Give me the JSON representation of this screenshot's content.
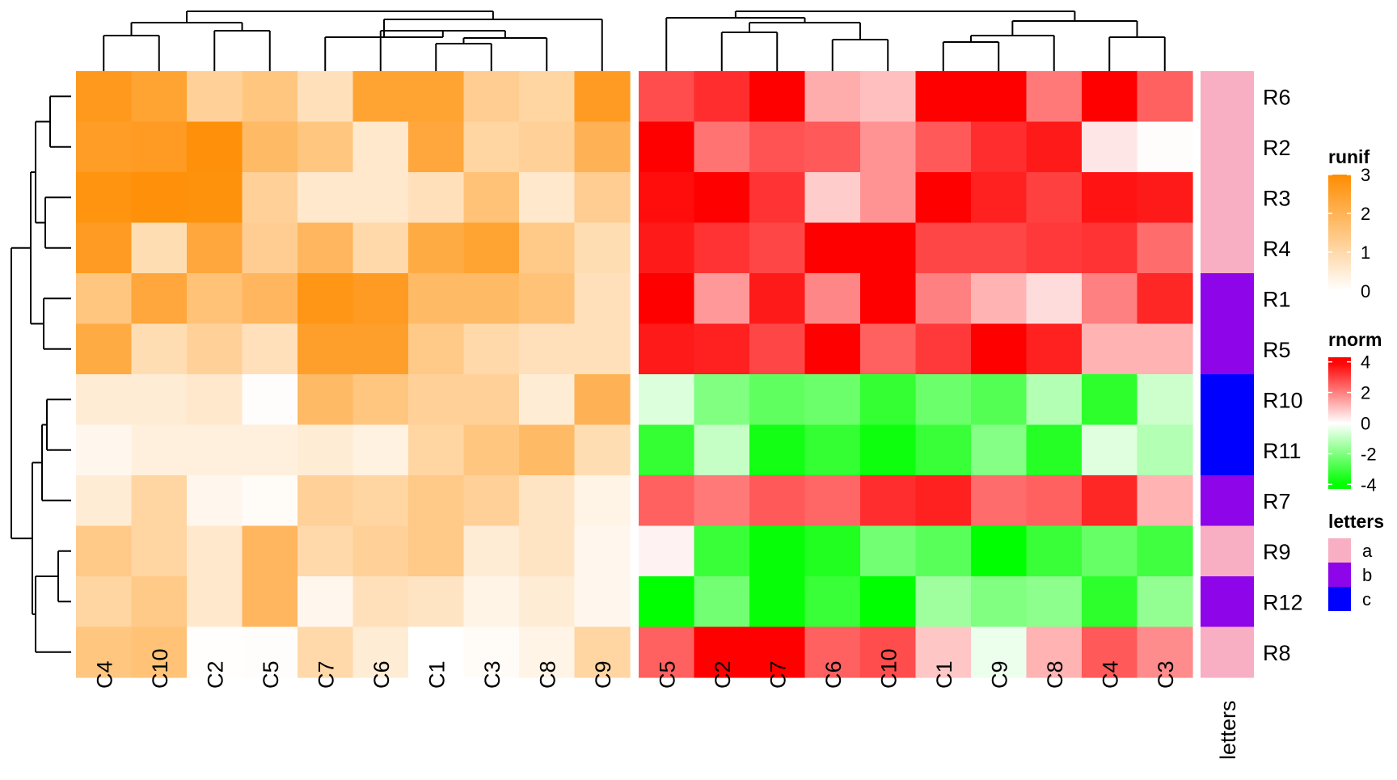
{
  "chart_data": {
    "type": "heatmap",
    "row_order": [
      "R6",
      "R2",
      "R3",
      "R4",
      "R1",
      "R5",
      "R10",
      "R11",
      "R7",
      "R9",
      "R12",
      "R8"
    ],
    "row_dendrogram": {
      "merges": [
        [
          "R6",
          "R2",
          0.7
        ],
        [
          "R3",
          "R4",
          0.78
        ],
        [
          "R6-R2",
          "R3-R4",
          0.92
        ],
        [
          "R1",
          "R5",
          0.72
        ],
        [
          "R6-R2-R3-R4",
          "R1-R5",
          0.97
        ],
        [
          "R10",
          "R11",
          0.6
        ],
        [
          "R10-R11",
          "R7",
          0.95
        ],
        [
          "R9",
          "R12",
          0.45
        ],
        [
          "R9-R12",
          "R8",
          0.9
        ],
        [
          "R10-R11-R7",
          "R9-R12-R8",
          0.97
        ],
        [
          "all_top",
          "all_bottom",
          1.0
        ]
      ]
    },
    "annotation": {
      "name": "letters",
      "values": [
        "a",
        "a",
        "a",
        "a",
        "b",
        "b",
        "c",
        "c",
        "b",
        "a",
        "b",
        "a"
      ],
      "legend_title": "letters",
      "levels": [
        {
          "label": "a",
          "color": "#F8AFC3"
        },
        {
          "label": "b",
          "color": "#8E05E9"
        },
        {
          "label": "c",
          "color": "#0000FF"
        }
      ]
    },
    "heatmaps": [
      {
        "name": "runif",
        "legend_title": "runif",
        "columns": [
          "C4",
          "C10",
          "C2",
          "C5",
          "C7",
          "C6",
          "C1",
          "C3",
          "C8",
          "C9"
        ],
        "color_stops": [
          {
            "value": 0,
            "color": "#FFFFFF"
          },
          {
            "value": 3,
            "color": "#FF8C00"
          }
        ],
        "legend_ticks": [
          "3",
          "2",
          "1",
          "0"
        ],
        "legend_range": [
          0,
          3
        ],
        "values": [
          [
            2.65,
            2.4,
            1.2,
            1.5,
            0.8,
            2.4,
            2.4,
            1.3,
            1.1,
            2.6
          ],
          [
            2.55,
            2.6,
            2.9,
            1.8,
            1.5,
            0.6,
            2.3,
            1.1,
            1.2,
            2.0
          ],
          [
            2.8,
            2.9,
            2.85,
            1.2,
            0.6,
            0.6,
            0.8,
            1.6,
            0.6,
            1.3
          ],
          [
            2.6,
            0.9,
            2.3,
            1.3,
            1.9,
            1.0,
            2.2,
            2.4,
            1.4,
            0.9
          ],
          [
            1.5,
            2.3,
            1.6,
            1.9,
            2.75,
            2.6,
            1.8,
            1.8,
            1.6,
            0.8
          ],
          [
            2.2,
            0.9,
            1.2,
            0.8,
            2.5,
            2.5,
            1.4,
            1.0,
            0.8,
            0.8
          ],
          [
            0.5,
            0.5,
            0.6,
            0.05,
            1.8,
            1.5,
            1.2,
            1.2,
            0.5,
            2.0
          ],
          [
            0.2,
            0.4,
            0.4,
            0.4,
            0.5,
            0.35,
            1.1,
            1.5,
            1.8,
            0.9
          ],
          [
            0.5,
            1.1,
            0.2,
            0.1,
            1.2,
            1.1,
            1.4,
            1.2,
            0.7,
            0.3
          ],
          [
            1.4,
            1.1,
            0.6,
            1.9,
            1.0,
            1.2,
            1.4,
            0.5,
            0.7,
            0.2
          ],
          [
            1.1,
            1.4,
            0.6,
            1.9,
            0.2,
            0.8,
            0.7,
            0.3,
            0.5,
            0.2
          ],
          [
            1.5,
            1.6,
            0.02,
            0.05,
            1.0,
            0.5,
            0.0,
            0.08,
            0.3,
            1.1
          ]
        ]
      },
      {
        "name": "rnorm",
        "legend_title": "rnorm",
        "columns": [
          "C5",
          "C2",
          "C7",
          "C6",
          "C10",
          "C1",
          "C9",
          "C8",
          "C4",
          "C3"
        ],
        "color_stops": [
          {
            "value": -4,
            "color": "#00FF00"
          },
          {
            "value": 0,
            "color": "#FFFFFF"
          },
          {
            "value": 4,
            "color": "#FF0000"
          }
        ],
        "legend_ticks": [
          "4",
          "2",
          "0",
          "-2",
          "-4"
        ],
        "legend_range": [
          -4.3,
          4.3
        ],
        "values": [
          [
            2.8,
            3.3,
            4.0,
            1.3,
            1.0,
            4.0,
            4.0,
            2.1,
            4.0,
            2.5
          ],
          [
            4.0,
            2.2,
            2.7,
            2.6,
            1.7,
            2.6,
            3.3,
            3.6,
            0.4,
            0.05
          ],
          [
            3.8,
            4.0,
            3.2,
            0.8,
            1.7,
            4.0,
            3.5,
            3.0,
            3.7,
            3.6
          ],
          [
            3.6,
            3.2,
            2.9,
            4.0,
            4.0,
            2.9,
            2.9,
            3.1,
            3.2,
            2.3
          ],
          [
            4.0,
            1.6,
            3.6,
            1.9,
            4.0,
            2.0,
            1.2,
            0.55,
            2.0,
            3.4
          ],
          [
            3.6,
            3.5,
            2.9,
            4.0,
            2.5,
            3.1,
            4.0,
            3.5,
            1.2,
            1.2
          ],
          [
            -0.55,
            -2.0,
            -2.5,
            -2.3,
            -3.2,
            -2.3,
            -2.7,
            -1.2,
            -3.3,
            -0.8
          ],
          [
            -3.2,
            -0.9,
            -3.7,
            -3.2,
            -3.8,
            -3.1,
            -1.9,
            -3.4,
            -0.5,
            -1.2
          ],
          [
            2.5,
            2.1,
            2.6,
            2.4,
            3.3,
            3.5,
            2.3,
            2.5,
            3.4,
            1.2
          ],
          [
            0.2,
            -3.1,
            -3.9,
            -3.5,
            -2.2,
            -2.6,
            -4.1,
            -3.1,
            -2.4,
            -3.0
          ],
          [
            -4.0,
            -2.2,
            -3.9,
            -3.1,
            -4.0,
            -1.5,
            -2.0,
            -1.8,
            -3.3,
            -1.7
          ],
          [
            2.5,
            4.0,
            4.0,
            2.5,
            2.8,
            0.9,
            -0.3,
            1.2,
            2.6,
            1.8
          ]
        ]
      }
    ]
  }
}
